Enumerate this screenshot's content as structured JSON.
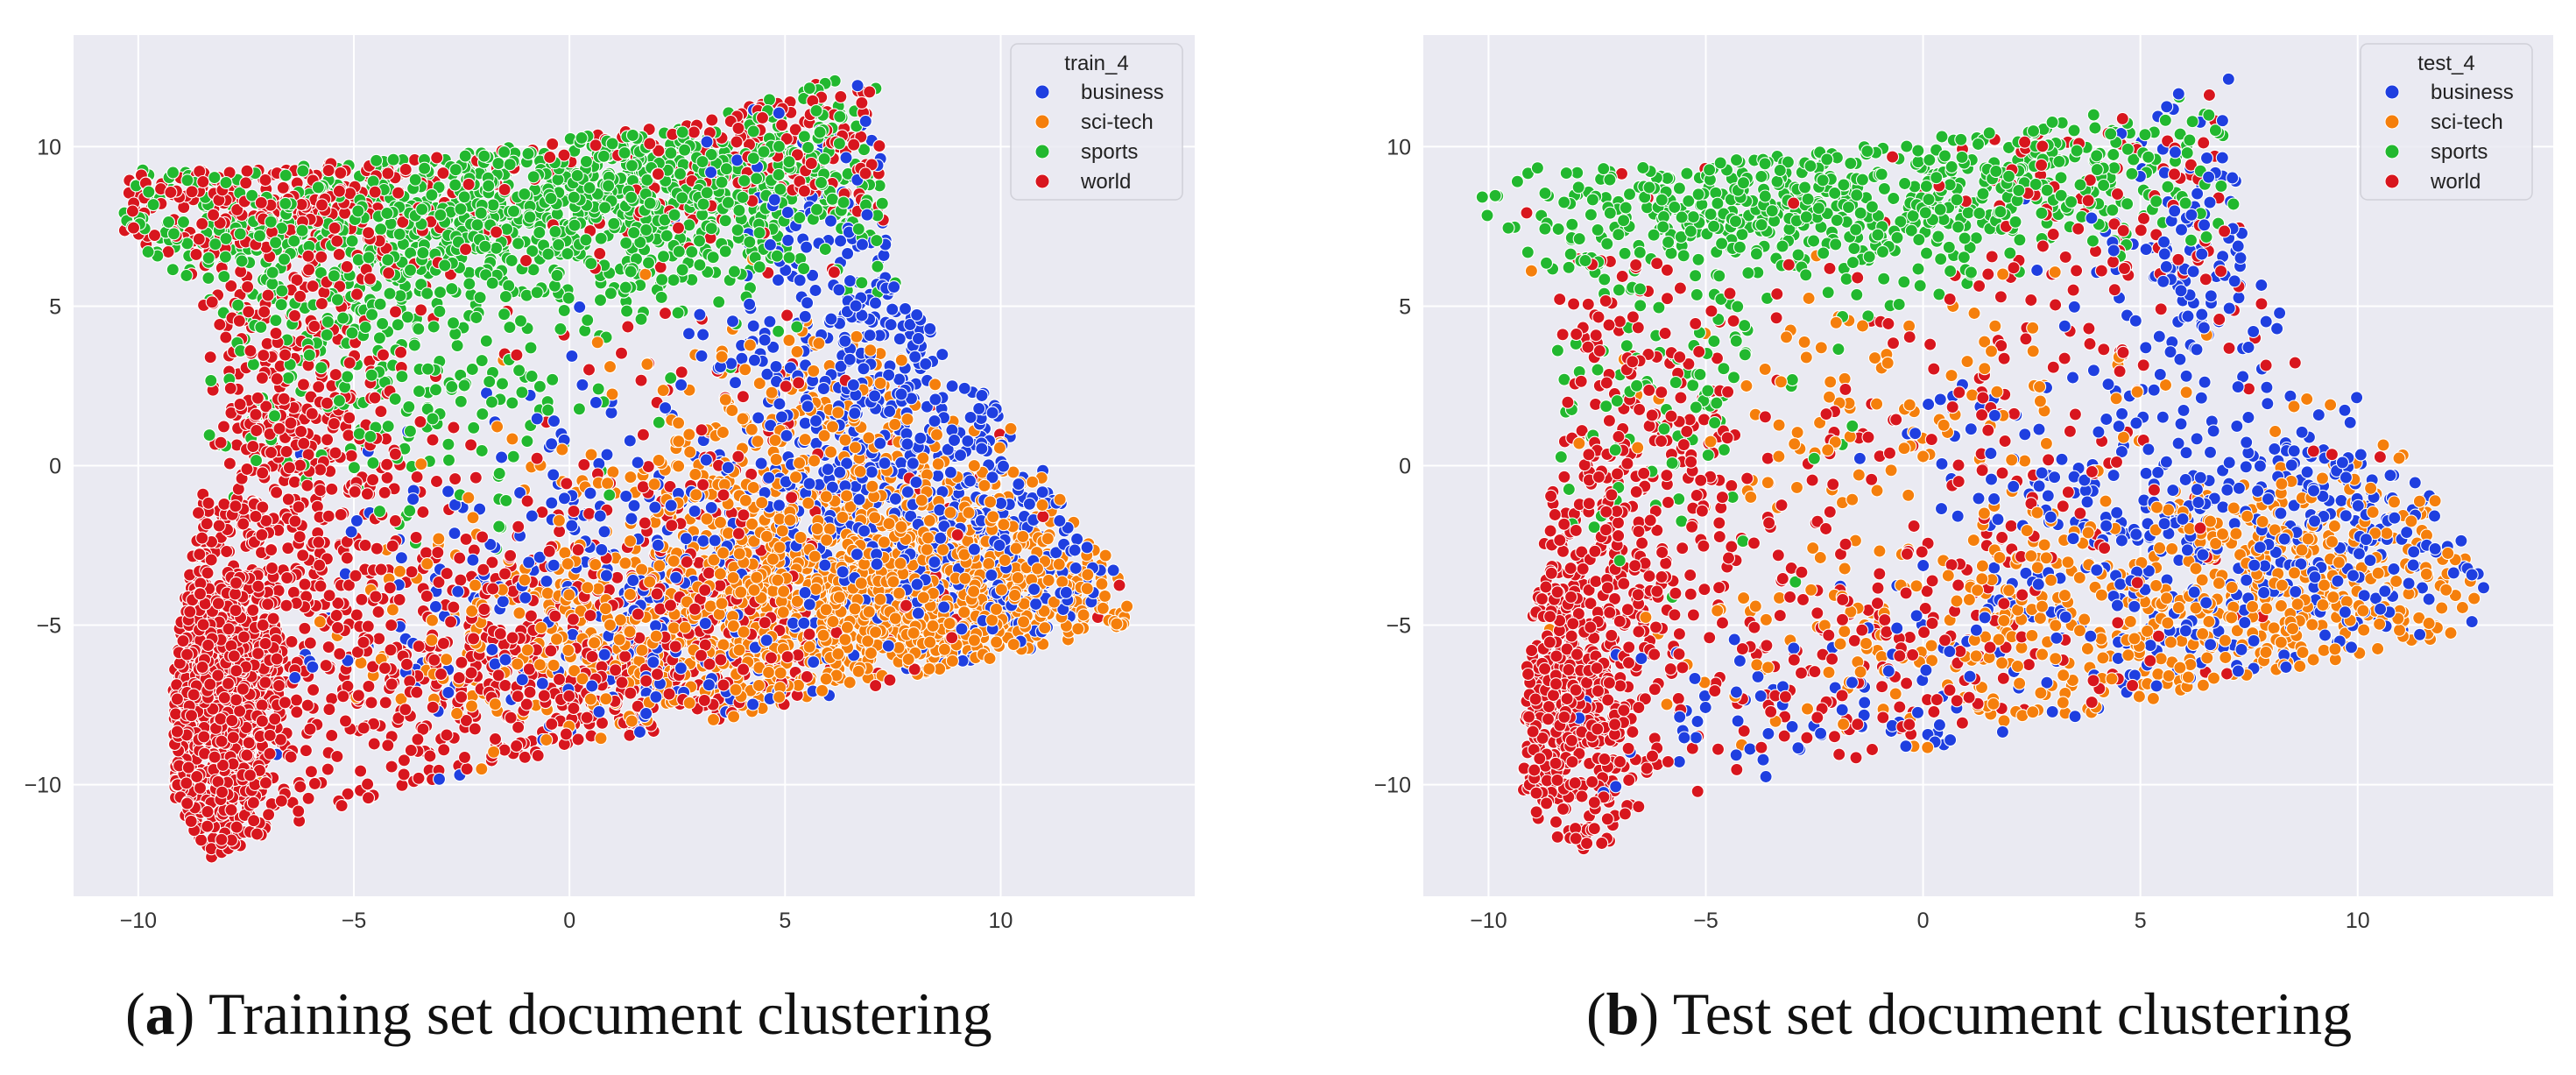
{
  "colors": {
    "background": "#eaeaf2",
    "grid": "#ffffff",
    "business": "#1f3fe0",
    "sci-tech": "#f57f0c",
    "sports": "#22b82f",
    "world": "#d8161e"
  },
  "chart_data": [
    {
      "type": "scatter",
      "panel_label": "a",
      "caption": "Training set document clustering",
      "legend_title": "train_4",
      "legend_location": "top-right",
      "categories": [
        "business",
        "sci-tech",
        "sports",
        "world"
      ],
      "xlim": [
        -11.5,
        14.5
      ],
      "ylim": [
        -13.5,
        13.5
      ],
      "xticks": [
        -10,
        -5,
        0,
        5,
        10
      ],
      "yticks": [
        -10,
        -5,
        0,
        5,
        10
      ],
      "xtick_labels": [
        "−10",
        "−5",
        "0",
        "5",
        "10"
      ],
      "ytick_labels": [
        "−10",
        "−5",
        "0",
        "5",
        "10"
      ],
      "grid": true,
      "point_seed": 17,
      "region_boundary": [
        [
          -10.4,
          7.0
        ],
        [
          -10.3,
          9.4
        ],
        [
          -7.0,
          9.3
        ],
        [
          -2.0,
          9.9
        ],
        [
          3.0,
          10.8
        ],
        [
          6.3,
          12.2
        ],
        [
          7.1,
          12.2
        ],
        [
          7.2,
          10.0
        ],
        [
          7.4,
          6.0
        ],
        [
          8.8,
          3.8
        ],
        [
          11.5,
          -1.0
        ],
        [
          13.4,
          -4.7
        ],
        [
          12.5,
          -5.2
        ],
        [
          5.0,
          -7.6
        ],
        [
          0.0,
          -8.9
        ],
        [
          -3.5,
          -10.0
        ],
        [
          -6.0,
          -11.2
        ],
        [
          -8.3,
          -12.3
        ],
        [
          -9.2,
          -10.5
        ],
        [
          -9.2,
          -6.5
        ],
        [
          -8.8,
          -3.0
        ],
        [
          -8.3,
          1.5
        ],
        [
          -8.5,
          5.0
        ],
        [
          -9.5,
          6.5
        ]
      ],
      "clusters": [
        {
          "label": "sports",
          "x": -3.0,
          "y": 7.8,
          "sx": 4.8,
          "sy": 1.6,
          "n": 900
        },
        {
          "label": "sports",
          "x": 3.5,
          "y": 9.3,
          "sx": 2.8,
          "sy": 1.5,
          "n": 350
        },
        {
          "label": "sports",
          "x": -4.5,
          "y": 2.5,
          "sx": 2.3,
          "sy": 2.4,
          "n": 220
        },
        {
          "label": "world",
          "x": -8.3,
          "y": -7.5,
          "sx": 0.9,
          "sy": 2.8,
          "n": 950
        },
        {
          "label": "world",
          "x": -6.6,
          "y": 0.5,
          "sx": 1.4,
          "sy": 4.2,
          "n": 480
        },
        {
          "label": "world",
          "x": -6.5,
          "y": 8.2,
          "sx": 2.6,
          "sy": 1.3,
          "n": 280
        },
        {
          "label": "world",
          "x": -1.0,
          "y": -6.8,
          "sx": 4.2,
          "sy": 2.2,
          "n": 620
        },
        {
          "label": "world",
          "x": 4.5,
          "y": 9.8,
          "sx": 2.6,
          "sy": 1.4,
          "n": 220
        },
        {
          "label": "world",
          "x": 2.0,
          "y": -2.0,
          "sx": 4.0,
          "sy": 4.0,
          "n": 220
        },
        {
          "label": "sci-tech",
          "x": 8.0,
          "y": -4.0,
          "sx": 3.3,
          "sy": 1.9,
          "n": 1000
        },
        {
          "label": "sci-tech",
          "x": 3.0,
          "y": -5.5,
          "sx": 3.5,
          "sy": 2.0,
          "n": 500
        },
        {
          "label": "sci-tech",
          "x": 5.0,
          "y": 0.5,
          "sx": 2.6,
          "sy": 2.0,
          "n": 250
        },
        {
          "label": "business",
          "x": 6.8,
          "y": 3.8,
          "sx": 1.6,
          "sy": 4.0,
          "n": 380
        },
        {
          "label": "business",
          "x": 9.8,
          "y": -2.0,
          "sx": 2.2,
          "sy": 2.4,
          "n": 320
        },
        {
          "label": "business",
          "x": 2.5,
          "y": -4.0,
          "sx": 4.0,
          "sy": 3.2,
          "n": 420
        }
      ]
    },
    {
      "type": "scatter",
      "panel_label": "b",
      "caption": "Test set document clustering",
      "legend_title": "test_4",
      "legend_location": "top-right",
      "categories": [
        "business",
        "sci-tech",
        "sports",
        "world"
      ],
      "xlim": [
        -11.5,
        14.5
      ],
      "ylim": [
        -13.5,
        13.5
      ],
      "xticks": [
        -10,
        -5,
        0,
        5,
        10
      ],
      "yticks": [
        -10,
        -5,
        0,
        5,
        10
      ],
      "xtick_labels": [
        "−10",
        "−5",
        "0",
        "5",
        "10"
      ],
      "ytick_labels": [
        "−10",
        "−5",
        "0",
        "5",
        "10"
      ],
      "grid": true,
      "point_seed": 91,
      "region_boundary": [
        [
          -10.6,
          7.0
        ],
        [
          -10.2,
          9.4
        ],
        [
          -7.0,
          9.3
        ],
        [
          -2.0,
          9.9
        ],
        [
          3.0,
          10.8
        ],
        [
          6.3,
          12.2
        ],
        [
          7.1,
          12.2
        ],
        [
          7.2,
          10.0
        ],
        [
          7.6,
          6.0
        ],
        [
          9.0,
          4.2
        ],
        [
          11.5,
          -0.5
        ],
        [
          13.4,
          -4.5
        ],
        [
          12.5,
          -5.2
        ],
        [
          5.0,
          -7.4
        ],
        [
          0.0,
          -9.0
        ],
        [
          -3.5,
          -10.0
        ],
        [
          -6.0,
          -11.2
        ],
        [
          -8.3,
          -12.3
        ],
        [
          -9.2,
          -10.5
        ],
        [
          -9.2,
          -6.5
        ],
        [
          -8.8,
          -3.0
        ],
        [
          -8.3,
          1.5
        ],
        [
          -8.5,
          5.0
        ],
        [
          -9.5,
          6.5
        ]
      ],
      "clusters": [
        {
          "label": "sports",
          "x": -3.5,
          "y": 8.2,
          "sx": 4.0,
          "sy": 1.3,
          "n": 450
        },
        {
          "label": "sports",
          "x": 2.5,
          "y": 9.6,
          "sx": 2.8,
          "sy": 1.3,
          "n": 200
        },
        {
          "label": "sports",
          "x": -6.0,
          "y": 2.5,
          "sx": 2.0,
          "sy": 3.0,
          "n": 120
        },
        {
          "label": "world",
          "x": -8.3,
          "y": -7.5,
          "sx": 0.9,
          "sy": 2.7,
          "n": 500
        },
        {
          "label": "world",
          "x": -6.8,
          "y": 0.0,
          "sx": 1.3,
          "sy": 4.0,
          "n": 260
        },
        {
          "label": "world",
          "x": -1.5,
          "y": -5.5,
          "sx": 4.0,
          "sy": 2.8,
          "n": 260
        },
        {
          "label": "world",
          "x": 4.5,
          "y": 8.0,
          "sx": 2.4,
          "sy": 2.0,
          "n": 110
        },
        {
          "label": "world",
          "x": 1.0,
          "y": 2.0,
          "sx": 4.0,
          "sy": 3.0,
          "n": 110
        },
        {
          "label": "sci-tech",
          "x": 8.5,
          "y": -3.5,
          "sx": 3.2,
          "sy": 2.0,
          "n": 420
        },
        {
          "label": "sci-tech",
          "x": 3.0,
          "y": -6.0,
          "sx": 3.5,
          "sy": 1.8,
          "n": 220
        },
        {
          "label": "sci-tech",
          "x": 0.0,
          "y": 1.5,
          "sx": 3.0,
          "sy": 2.5,
          "n": 120
        },
        {
          "label": "business",
          "x": 5.5,
          "y": -2.5,
          "sx": 3.0,
          "sy": 2.8,
          "n": 330
        },
        {
          "label": "business",
          "x": 6.5,
          "y": 6.5,
          "sx": 1.3,
          "sy": 2.5,
          "n": 130
        },
        {
          "label": "business",
          "x": 10.0,
          "y": -2.0,
          "sx": 1.8,
          "sy": 2.0,
          "n": 150
        },
        {
          "label": "business",
          "x": -1.5,
          "y": -8.0,
          "sx": 3.0,
          "sy": 1.5,
          "n": 80
        }
      ]
    }
  ]
}
